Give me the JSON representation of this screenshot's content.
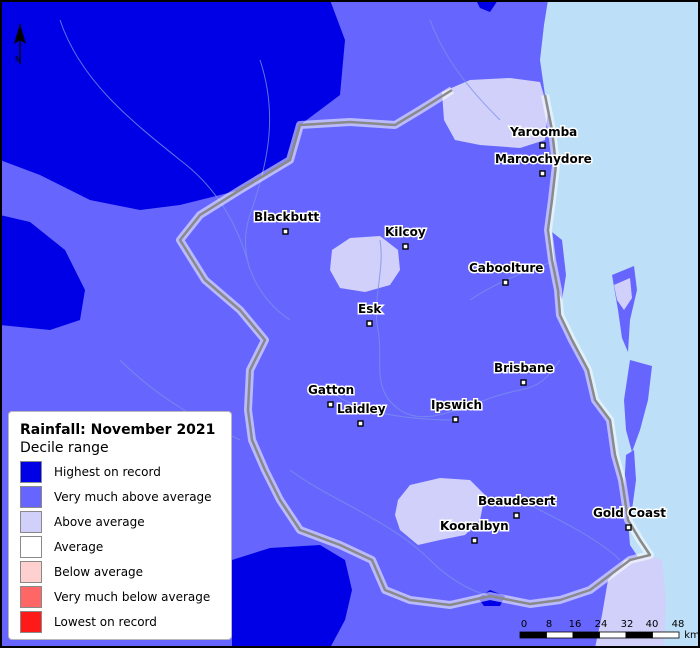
{
  "colors": {
    "ocean": "#bddff7",
    "highest_on_record": "#0000e6",
    "very_much_above_average": "#6666ff",
    "above_average": "#d0d0fb",
    "average": "#ffffff",
    "below_average": "#ffd0d0",
    "very_much_below_average": "#ff6666",
    "lowest_on_record": "#ff1a1a",
    "region_outline": "#8a8a8a",
    "rivers": "#7d8fe8"
  },
  "north_arrow": {
    "label": "N",
    "icon": "north-arrow-icon"
  },
  "towns": [
    {
      "id": "yaroomba",
      "name": "Yaroomba"
    },
    {
      "id": "maroochydore",
      "name": "Maroochydore"
    },
    {
      "id": "blackbutt",
      "name": "Blackbutt"
    },
    {
      "id": "kilcoy",
      "name": "Kilcoy"
    },
    {
      "id": "caboolture",
      "name": "Caboolture"
    },
    {
      "id": "esk",
      "name": "Esk"
    },
    {
      "id": "brisbane",
      "name": "Brisbane"
    },
    {
      "id": "gatton",
      "name": "Gatton"
    },
    {
      "id": "laidley",
      "name": "Laidley"
    },
    {
      "id": "ipswich",
      "name": "Ipswich"
    },
    {
      "id": "beaudesert",
      "name": "Beaudesert"
    },
    {
      "id": "gold_coast",
      "name": "Gold Coast"
    },
    {
      "id": "kooralbyn",
      "name": "Kooralbyn"
    }
  ],
  "legend": {
    "title": "Rainfall: November 2021",
    "subtitle": "Decile range",
    "items": [
      {
        "label": "Highest on record",
        "color": "#0000e6"
      },
      {
        "label": "Very much above average",
        "color": "#6666ff"
      },
      {
        "label": "Above average",
        "color": "#d0d0fb"
      },
      {
        "label": "Average",
        "color": "#ffffff"
      },
      {
        "label": "Below average",
        "color": "#ffd0d0"
      },
      {
        "label": "Very much below average",
        "color": "#ff6666"
      },
      {
        "label": "Lowest on record",
        "color": "#ff1a1a"
      }
    ]
  },
  "scale_bar": {
    "ticks": [
      "0",
      "8",
      "16",
      "24",
      "32",
      "40",
      "48"
    ],
    "unit": "km"
  }
}
